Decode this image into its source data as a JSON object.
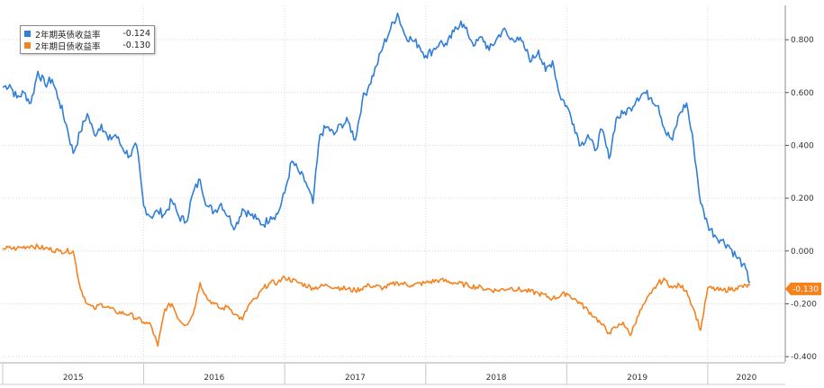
{
  "chart_data": {
    "type": "line",
    "title": "",
    "xlabel": "",
    "ylabel": "",
    "x_tick_labels": [
      "2015",
      "2016",
      "2017",
      "2018",
      "2019",
      "2020"
    ],
    "y_ticks": [
      -0.4,
      -0.2,
      0.0,
      0.2,
      0.4,
      0.6,
      0.8
    ],
    "y_tick_labels": [
      "-0.400",
      "-0.200",
      "0.000",
      "0.200",
      "0.400",
      "0.600",
      "0.800"
    ],
    "ylim": [
      -0.42,
      0.93
    ],
    "xlim": [
      2015.0,
      2020.55
    ],
    "grid": true,
    "legend_position": "top-left",
    "series": [
      {
        "name": "2年期英债收益率",
        "last_value": "-0.124",
        "color": "#2f7ed8",
        "x": [
          2015.0,
          2015.05,
          2015.1,
          2015.15,
          2015.2,
          2015.25,
          2015.3,
          2015.35,
          2015.4,
          2015.45,
          2015.5,
          2015.55,
          2015.6,
          2015.65,
          2015.7,
          2015.75,
          2015.8,
          2015.85,
          2015.9,
          2015.95,
          2016.0,
          2016.05,
          2016.1,
          2016.15,
          2016.2,
          2016.25,
          2016.3,
          2016.35,
          2016.4,
          2016.45,
          2016.5,
          2016.55,
          2016.6,
          2016.65,
          2016.7,
          2016.75,
          2016.8,
          2016.85,
          2016.9,
          2016.95,
          2017.0,
          2017.05,
          2017.1,
          2017.15,
          2017.2,
          2017.25,
          2017.3,
          2017.35,
          2017.4,
          2017.45,
          2017.5,
          2017.55,
          2017.6,
          2017.65,
          2017.7,
          2017.75,
          2017.8,
          2017.85,
          2017.9,
          2017.95,
          2018.0,
          2018.05,
          2018.1,
          2018.15,
          2018.2,
          2018.25,
          2018.3,
          2018.35,
          2018.4,
          2018.45,
          2018.5,
          2018.55,
          2018.6,
          2018.65,
          2018.7,
          2018.75,
          2018.8,
          2018.85,
          2018.9,
          2018.95,
          2019.0,
          2019.05,
          2019.1,
          2019.15,
          2019.2,
          2019.25,
          2019.3,
          2019.35,
          2019.4,
          2019.45,
          2019.5,
          2019.55,
          2019.6,
          2019.65,
          2019.7,
          2019.75,
          2019.8,
          2019.85,
          2019.9,
          2019.95,
          2020.0,
          2020.05,
          2020.1,
          2020.15,
          2020.2,
          2020.25,
          2020.3
        ],
        "values": [
          0.62,
          0.63,
          0.58,
          0.6,
          0.56,
          0.68,
          0.63,
          0.65,
          0.57,
          0.48,
          0.37,
          0.45,
          0.52,
          0.44,
          0.48,
          0.42,
          0.44,
          0.39,
          0.36,
          0.4,
          0.17,
          0.13,
          0.15,
          0.14,
          0.19,
          0.13,
          0.11,
          0.22,
          0.27,
          0.17,
          0.15,
          0.18,
          0.13,
          0.09,
          0.16,
          0.14,
          0.12,
          0.1,
          0.13,
          0.14,
          0.22,
          0.34,
          0.3,
          0.26,
          0.18,
          0.44,
          0.47,
          0.44,
          0.48,
          0.49,
          0.42,
          0.57,
          0.63,
          0.7,
          0.78,
          0.84,
          0.9,
          0.82,
          0.8,
          0.78,
          0.74,
          0.76,
          0.79,
          0.78,
          0.83,
          0.87,
          0.82,
          0.78,
          0.81,
          0.76,
          0.8,
          0.84,
          0.8,
          0.81,
          0.77,
          0.72,
          0.76,
          0.68,
          0.72,
          0.59,
          0.55,
          0.48,
          0.4,
          0.44,
          0.38,
          0.46,
          0.35,
          0.5,
          0.52,
          0.54,
          0.58,
          0.6,
          0.58,
          0.55,
          0.45,
          0.42,
          0.52,
          0.56,
          0.4,
          0.18,
          0.1,
          0.06,
          0.04,
          0.02,
          -0.02,
          -0.05,
          -0.12
        ]
      },
      {
        "name": "2年期日债收益率",
        "last_value": "-0.130",
        "color": "#f5821f",
        "x": [
          2015.0,
          2015.1,
          2015.2,
          2015.3,
          2015.4,
          2015.5,
          2015.55,
          2015.6,
          2015.65,
          2015.7,
          2015.8,
          2015.9,
          2016.0,
          2016.05,
          2016.1,
          2016.15,
          2016.2,
          2016.25,
          2016.3,
          2016.35,
          2016.4,
          2016.45,
          2016.5,
          2016.55,
          2016.6,
          2016.65,
          2016.7,
          2016.75,
          2016.8,
          2016.85,
          2016.9,
          2016.95,
          2017.0,
          2017.1,
          2017.2,
          2017.3,
          2017.4,
          2017.5,
          2017.6,
          2017.7,
          2017.8,
          2017.9,
          2018.0,
          2018.1,
          2018.2,
          2018.3,
          2018.4,
          2018.5,
          2018.6,
          2018.7,
          2018.8,
          2018.9,
          2019.0,
          2019.1,
          2019.2,
          2019.25,
          2019.3,
          2019.35,
          2019.4,
          2019.45,
          2019.5,
          2019.55,
          2019.6,
          2019.65,
          2019.7,
          2019.75,
          2019.8,
          2019.85,
          2019.9,
          2019.95,
          2020.0,
          2020.1,
          2020.2,
          2020.3
        ],
        "values": [
          0.01,
          0.01,
          0.02,
          0.01,
          0.0,
          0.0,
          -0.14,
          -0.2,
          -0.22,
          -0.2,
          -0.23,
          -0.24,
          -0.27,
          -0.28,
          -0.36,
          -0.22,
          -0.2,
          -0.26,
          -0.28,
          -0.24,
          -0.12,
          -0.18,
          -0.2,
          -0.22,
          -0.21,
          -0.24,
          -0.26,
          -0.2,
          -0.18,
          -0.14,
          -0.12,
          -0.12,
          -0.1,
          -0.12,
          -0.14,
          -0.13,
          -0.14,
          -0.15,
          -0.13,
          -0.14,
          -0.12,
          -0.13,
          -0.12,
          -0.11,
          -0.12,
          -0.13,
          -0.14,
          -0.15,
          -0.14,
          -0.15,
          -0.16,
          -0.18,
          -0.16,
          -0.2,
          -0.25,
          -0.28,
          -0.31,
          -0.29,
          -0.27,
          -0.32,
          -0.25,
          -0.2,
          -0.16,
          -0.12,
          -0.11,
          -0.14,
          -0.13,
          -0.15,
          -0.22,
          -0.3,
          -0.14,
          -0.15,
          -0.14,
          -0.13
        ]
      }
    ]
  }
}
